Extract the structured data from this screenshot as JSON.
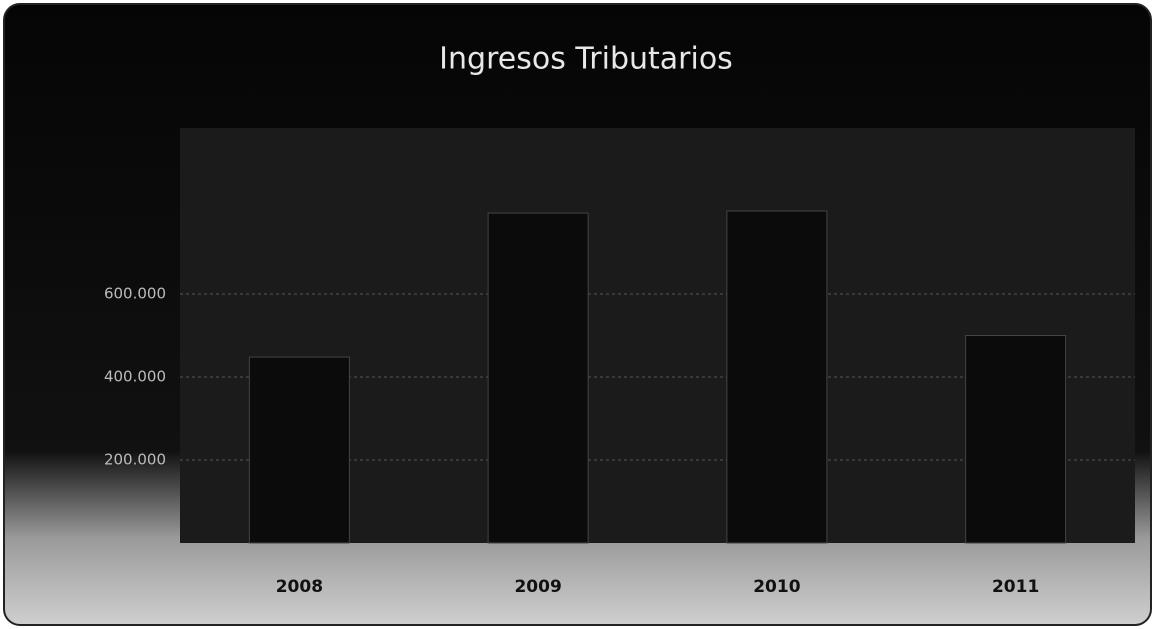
{
  "chart_data": {
    "type": "bar",
    "title": "Ingresos Tributarios",
    "categories": [
      "2008",
      "2009",
      "2010",
      "2011"
    ],
    "values": [
      448000,
      795000,
      800000,
      500000
    ],
    "color": "#0b0b0b",
    "ylim": [
      0,
      1000000
    ],
    "yticks": [
      {
        "value": 200000,
        "label": "200.000"
      },
      {
        "value": 400000,
        "label": "400.000"
      },
      {
        "value": 600000,
        "label": "600.000"
      }
    ],
    "grid": true
  }
}
